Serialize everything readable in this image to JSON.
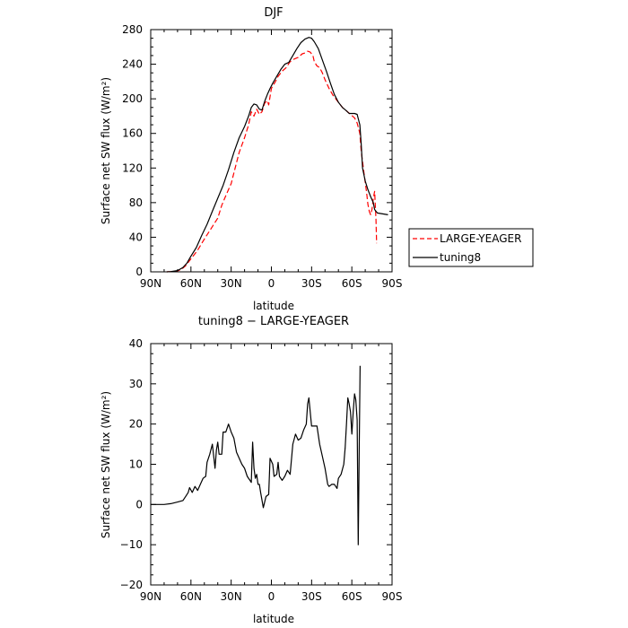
{
  "chart_data": [
    {
      "type": "line",
      "title": "DJF",
      "xlabel": "latitude",
      "ylabel": "Surface net SW flux (W/m²)",
      "xlim": [
        90,
        -90
      ],
      "ylim": [
        0,
        280
      ],
      "xticks": [
        90,
        60,
        30,
        0,
        -30,
        -60,
        -90
      ],
      "xtick_labels": [
        "90N",
        "60N",
        "30N",
        "0",
        "30S",
        "60S",
        "90S"
      ],
      "yticks": [
        0,
        40,
        80,
        120,
        160,
        200,
        240,
        280
      ],
      "ytick_labels": [
        "0",
        "40",
        "80",
        "120",
        "160",
        "200",
        "240",
        "280"
      ],
      "legend_position": "right",
      "series": [
        {
          "name": "LARGE-YEAGER",
          "color": "#ff0000",
          "dash": "dashed",
          "points": [
            [
              78,
              0
            ],
            [
              75,
              0.3
            ],
            [
              70,
              1
            ],
            [
              67,
              3
            ],
            [
              64,
              7
            ],
            [
              60,
              15
            ],
            [
              55,
              25
            ],
            [
              50,
              38
            ],
            [
              45,
              50
            ],
            [
              40,
              62
            ],
            [
              37,
              77
            ],
            [
              34,
              88
            ],
            [
              30,
              102
            ],
            [
              27,
              120
            ],
            [
              24,
              138
            ],
            [
              20,
              155
            ],
            [
              17,
              170
            ],
            [
              15,
              185
            ],
            [
              13,
              180
            ],
            [
              11,
              188
            ],
            [
              9,
              182
            ],
            [
              7,
              185
            ],
            [
              5,
              195
            ],
            [
              3,
              198
            ],
            [
              2,
              193
            ],
            [
              0,
              212
            ],
            [
              -3,
              220
            ],
            [
              -5,
              226
            ],
            [
              -8,
              232
            ],
            [
              -11,
              236
            ],
            [
              -14,
              243
            ],
            [
              -17,
              246
            ],
            [
              -20,
              248
            ],
            [
              -23,
              252
            ],
            [
              -25,
              253
            ],
            [
              -27,
              255
            ],
            [
              -29,
              254
            ],
            [
              -31,
              250
            ],
            [
              -32,
              243
            ],
            [
              -34,
              238
            ],
            [
              -36,
              236
            ],
            [
              -38,
              230
            ],
            [
              -40,
              222
            ],
            [
              -43,
              212
            ],
            [
              -46,
              204
            ],
            [
              -50,
              196
            ],
            [
              -53,
              190
            ],
            [
              -56,
              186
            ],
            [
              -59,
              182
            ],
            [
              -62,
              178
            ],
            [
              -64,
              172
            ],
            [
              -66,
              160
            ],
            [
              -67,
              140
            ],
            [
              -69,
              115
            ],
            [
              -71,
              92
            ],
            [
              -72,
              78
            ],
            [
              -73,
              70
            ],
            [
              -74,
              66
            ],
            [
              -75,
              72
            ],
            [
              -76,
              85
            ],
            [
              -77,
              93
            ],
            [
              -78,
              60
            ],
            [
              -78.5,
              33
            ]
          ]
        },
        {
          "name": "tuning8",
          "color": "#000000",
          "dash": "solid",
          "points": [
            [
              78,
              0
            ],
            [
              75,
              0.3
            ],
            [
              70,
              1.5
            ],
            [
              66,
              5
            ],
            [
              63,
              10
            ],
            [
              60,
              18
            ],
            [
              56,
              28
            ],
            [
              52,
              42
            ],
            [
              48,
              55
            ],
            [
              44,
              70
            ],
            [
              40,
              85
            ],
            [
              36,
              100
            ],
            [
              32,
              118
            ],
            [
              28,
              138
            ],
            [
              24,
              155
            ],
            [
              20,
              168
            ],
            [
              17,
              180
            ],
            [
              15,
              190
            ],
            [
              13,
              194
            ],
            [
              11,
              193
            ],
            [
              9,
              188
            ],
            [
              7,
              187
            ],
            [
              5,
              197
            ],
            [
              3,
              205
            ],
            [
              1,
              212
            ],
            [
              -1,
              218
            ],
            [
              -4,
              226
            ],
            [
              -7,
              234
            ],
            [
              -10,
              240
            ],
            [
              -13,
              242
            ],
            [
              -16,
              250
            ],
            [
              -19,
              258
            ],
            [
              -22,
              265
            ],
            [
              -25,
              269
            ],
            [
              -28,
              271
            ],
            [
              -30,
              270
            ],
            [
              -32,
              266
            ],
            [
              -35,
              258
            ],
            [
              -38,
              245
            ],
            [
              -41,
              232
            ],
            [
              -44,
              218
            ],
            [
              -47,
              205
            ],
            [
              -50,
              196
            ],
            [
              -53,
              190
            ],
            [
              -56,
              186
            ],
            [
              -58,
              183
            ],
            [
              -62,
              183
            ],
            [
              -64,
              182
            ],
            [
              -66,
              170
            ],
            [
              -67,
              148
            ],
            [
              -68,
              120
            ],
            [
              -70,
              105
            ],
            [
              -72,
              95
            ],
            [
              -74,
              87
            ],
            [
              -76,
              80
            ],
            [
              -77,
              72
            ],
            [
              -79,
              68
            ],
            [
              -83,
              67
            ],
            [
              -87,
              66
            ]
          ]
        }
      ]
    },
    {
      "type": "line",
      "title": "tuning8 − LARGE-YEAGER",
      "xlabel": "latitude",
      "ylabel": "Surface net SW flux (W/m²)",
      "xlim": [
        90,
        -90
      ],
      "ylim": [
        -20,
        40
      ],
      "xticks": [
        90,
        60,
        30,
        0,
        -30,
        -60,
        -90
      ],
      "xtick_labels": [
        "90N",
        "60N",
        "30N",
        "0",
        "30S",
        "60S",
        "90S"
      ],
      "yticks": [
        -20,
        -10,
        0,
        10,
        20,
        30,
        40
      ],
      "ytick_labels": [
        "−20",
        "−10",
        "0",
        "10",
        "20",
        "30",
        "40"
      ],
      "series": [
        {
          "color": "#000000",
          "dash": "solid",
          "points": [
            [
              90,
              0
            ],
            [
              80,
              0
            ],
            [
              75,
              0.2
            ],
            [
              70,
              0.6
            ],
            [
              66,
              1
            ],
            [
              64,
              2
            ],
            [
              62,
              3
            ],
            [
              61,
              4.2
            ],
            [
              59,
              3
            ],
            [
              57,
              4.5
            ],
            [
              55,
              3.5
            ],
            [
              53,
              5
            ],
            [
              51,
              6.5
            ],
            [
              49,
              7
            ],
            [
              48,
              10.5
            ],
            [
              46,
              12.5
            ],
            [
              44,
              15
            ],
            [
              43,
              12
            ],
            [
              42,
              9
            ],
            [
              41,
              13.5
            ],
            [
              40,
              15.5
            ],
            [
              39,
              12.5
            ],
            [
              37,
              12.5
            ],
            [
              36,
              18
            ],
            [
              34,
              18
            ],
            [
              32,
              20
            ],
            [
              30,
              18
            ],
            [
              28,
              16.5
            ],
            [
              26,
              13
            ],
            [
              24,
              11.5
            ],
            [
              22,
              10
            ],
            [
              20,
              9
            ],
            [
              18,
              7
            ],
            [
              16,
              6
            ],
            [
              15,
              5.5
            ],
            [
              14,
              15.5
            ],
            [
              13,
              9
            ],
            [
              12,
              6.5
            ],
            [
              11,
              7.5
            ],
            [
              10,
              5
            ],
            [
              9,
              5
            ],
            [
              8,
              3
            ],
            [
              6,
              -0.8
            ],
            [
              4,
              2
            ],
            [
              2,
              2.5
            ],
            [
              1,
              11.5
            ],
            [
              -1,
              10
            ],
            [
              -2,
              7
            ],
            [
              -4,
              7.5
            ],
            [
              -5,
              10.5
            ],
            [
              -6,
              7
            ],
            [
              -8,
              6
            ],
            [
              -10,
              7
            ],
            [
              -12,
              8.5
            ],
            [
              -14,
              7.5
            ],
            [
              -16,
              15
            ],
            [
              -18,
              17.5
            ],
            [
              -20,
              16
            ],
            [
              -22,
              16.5
            ],
            [
              -24,
              18.5
            ],
            [
              -26,
              20
            ],
            [
              -27,
              25
            ],
            [
              -28,
              26.5
            ],
            [
              -30,
              19.5
            ],
            [
              -32,
              19.5
            ],
            [
              -34,
              19.5
            ],
            [
              -36,
              15
            ],
            [
              -38,
              12
            ],
            [
              -40,
              9
            ],
            [
              -42,
              5
            ],
            [
              -43,
              4.5
            ],
            [
              -45,
              5
            ],
            [
              -47,
              5
            ],
            [
              -49,
              4
            ],
            [
              -50,
              6.5
            ],
            [
              -52,
              7.5
            ],
            [
              -54,
              10
            ],
            [
              -55,
              14
            ],
            [
              -56,
              20
            ],
            [
              -57,
              26.5
            ],
            [
              -58,
              25
            ],
            [
              -59,
              23
            ],
            [
              -60,
              17.5
            ],
            [
              -61,
              23
            ],
            [
              -62,
              27.5
            ],
            [
              -63,
              26
            ],
            [
              -64,
              21
            ],
            [
              -64.8,
              -10
            ],
            [
              -65.5,
              14
            ],
            [
              -66.2,
              34.5
            ]
          ]
        }
      ]
    }
  ]
}
